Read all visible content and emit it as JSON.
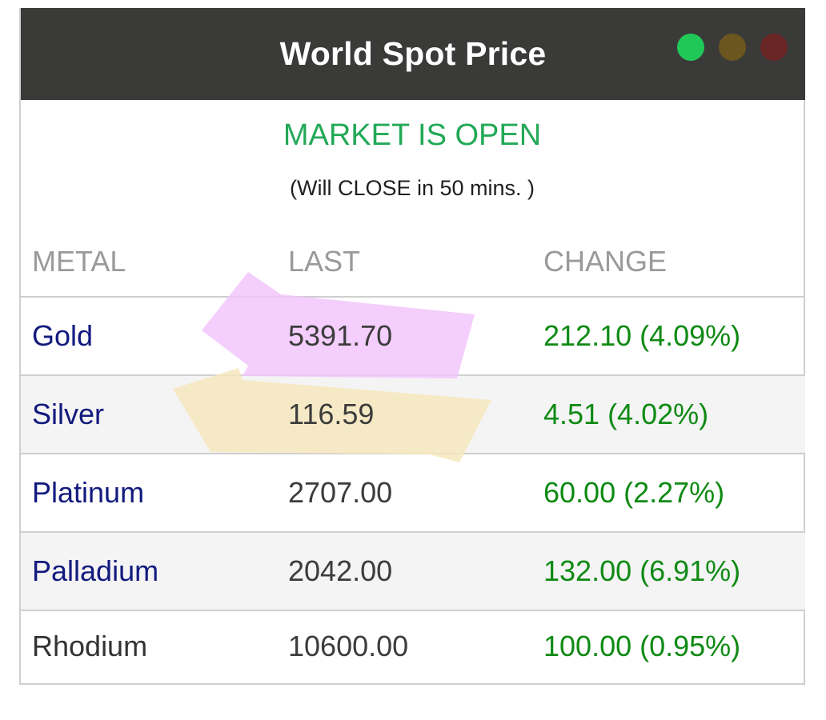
{
  "header": {
    "title": "World Spot Price",
    "lights": [
      {
        "name": "green",
        "color": "#20c957"
      },
      {
        "name": "yellow",
        "color": "#6b5620"
      },
      {
        "name": "red",
        "color": "#6a2525"
      }
    ]
  },
  "market": {
    "status": "MARKET IS OPEN",
    "countdown": "(Will CLOSE in 50 mins. )"
  },
  "table": {
    "columns": [
      "METAL",
      "LAST",
      "CHANGE"
    ],
    "rows": [
      {
        "metal": "Gold",
        "last": "5391.70",
        "change": "212.10 (4.09%)"
      },
      {
        "metal": "Silver",
        "last": "116.59",
        "change": "4.51 (4.02%)"
      },
      {
        "metal": "Platinum",
        "last": "2707.00",
        "change": "60.00 (2.27%)"
      },
      {
        "metal": "Palladium",
        "last": "2042.00",
        "change": "132.00 (6.91%)"
      },
      {
        "metal": "Rhodium",
        "last": "10600.00",
        "change": "100.00 (0.95%)"
      }
    ]
  },
  "highlights": {
    "pink": "#f2c6fb",
    "yellow": "#f6e7bd"
  }
}
